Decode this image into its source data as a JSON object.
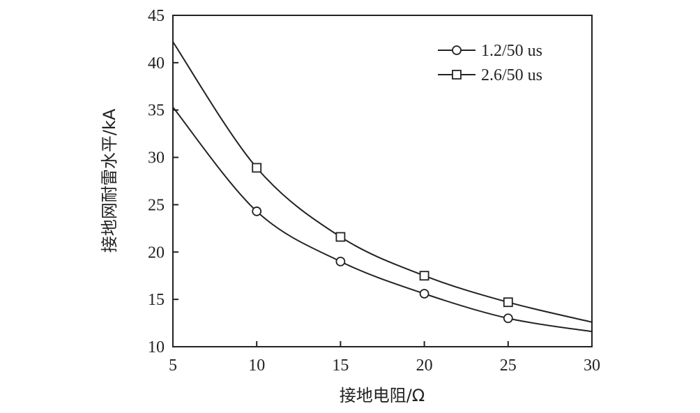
{
  "chart_data": {
    "type": "line",
    "xlabel": "接地电阻/Ω",
    "ylabel": "接地网耐雷水平/kA",
    "xlim": [
      5,
      30
    ],
    "ylim": [
      10,
      45
    ],
    "xticks": [
      5,
      10,
      15,
      20,
      25,
      30
    ],
    "yticks": [
      10,
      15,
      20,
      25,
      30,
      35,
      40,
      45
    ],
    "xtick_labels": [
      "5",
      "10",
      "15",
      "20",
      "25",
      "30"
    ],
    "ytick_labels": [
      "10",
      "15",
      "20",
      "25",
      "30",
      "35",
      "40",
      "45"
    ],
    "grid": false,
    "legend_position": "top-right",
    "series": [
      {
        "name": "1.2/50 us",
        "marker": "circle",
        "x": [
          5,
          10,
          15,
          20,
          25,
          30
        ],
        "y": [
          35.3,
          24.3,
          19.0,
          15.6,
          13.0,
          11.6
        ],
        "marker_x": [
          10,
          15,
          20,
          25
        ],
        "marker_y": [
          24.3,
          19.0,
          15.6,
          13.0
        ]
      },
      {
        "name": "2.6/50 us",
        "marker": "square",
        "x": [
          5,
          10,
          15,
          20,
          25,
          30
        ],
        "y": [
          42.2,
          28.9,
          21.6,
          17.5,
          14.7,
          12.6
        ],
        "marker_x": [
          10,
          15,
          20,
          25
        ],
        "marker_y": [
          28.9,
          21.6,
          17.5,
          14.7
        ]
      }
    ]
  }
}
